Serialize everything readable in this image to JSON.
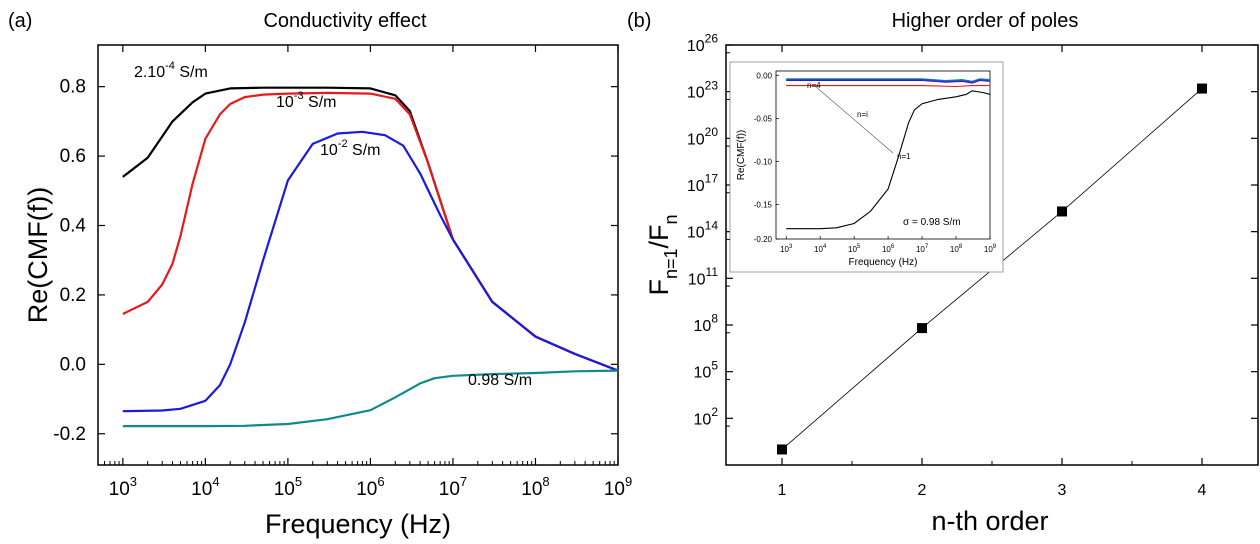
{
  "chart_data": [
    {
      "type": "line",
      "panel_label": "(a)",
      "title": "Conductivity effect",
      "xlabel": "Frequency (Hz)",
      "ylabel": "Re(CMF(f))",
      "xscale": "log",
      "xlim": [
        500,
        1000000000
      ],
      "ylim": [
        -0.29,
        0.92
      ],
      "xticks": [
        {
          "value": 1000,
          "base": "10",
          "exp": "3"
        },
        {
          "value": 10000,
          "base": "10",
          "exp": "4"
        },
        {
          "value": 100000,
          "base": "10",
          "exp": "5"
        },
        {
          "value": 1000000,
          "base": "10",
          "exp": "6"
        },
        {
          "value": 10000000,
          "base": "10",
          "exp": "7"
        },
        {
          "value": 100000000,
          "base": "10",
          "exp": "8"
        },
        {
          "value": 1000000000,
          "base": "10",
          "exp": "9"
        }
      ],
      "yticks": [
        {
          "value": -0.2,
          "label": "-0.2"
        },
        {
          "value": 0.0,
          "label": "0.0"
        },
        {
          "value": 0.2,
          "label": "0.2"
        },
        {
          "value": 0.4,
          "label": "0.4"
        },
        {
          "value": 0.6,
          "label": "0.6"
        },
        {
          "value": 0.8,
          "label": "0.8"
        }
      ],
      "grid": false,
      "series": [
        {
          "color": "#000000",
          "x": [
            1000,
            2000,
            4000,
            7000,
            10000,
            20000,
            50000,
            100000,
            300000,
            1000000,
            2000000,
            3000000,
            5000000,
            10000000,
            30000000,
            100000000,
            300000000,
            1000000000
          ],
          "y": [
            0.54,
            0.595,
            0.7,
            0.755,
            0.78,
            0.795,
            0.797,
            0.797,
            0.797,
            0.795,
            0.775,
            0.73,
            0.58,
            0.36,
            0.18,
            0.08,
            0.03,
            -0.018
          ]
        },
        {
          "color": "#e8191b",
          "x": [
            1000,
            2000,
            3000,
            4000,
            5000,
            7000,
            10000,
            15000,
            20000,
            30000,
            50000,
            100000,
            300000,
            1000000,
            2000000,
            3000000,
            5000000,
            10000000,
            30000000,
            100000000,
            300000000,
            1000000000
          ],
          "y": [
            0.145,
            0.18,
            0.23,
            0.29,
            0.37,
            0.52,
            0.65,
            0.72,
            0.75,
            0.77,
            0.777,
            0.78,
            0.782,
            0.78,
            0.765,
            0.72,
            0.58,
            0.36,
            0.18,
            0.08,
            0.03,
            -0.018
          ]
        },
        {
          "color": "#1a1ae0",
          "x": [
            1000,
            3000,
            5000,
            10000,
            15000,
            20000,
            30000,
            50000,
            100000,
            200000,
            400000,
            800000,
            1500000,
            2500000,
            4000000,
            7000000,
            10000000,
            30000000,
            100000000,
            300000000,
            1000000000
          ],
          "y": [
            -0.135,
            -0.133,
            -0.128,
            -0.105,
            -0.06,
            0.0,
            0.12,
            0.3,
            0.53,
            0.635,
            0.665,
            0.67,
            0.66,
            0.63,
            0.55,
            0.43,
            0.36,
            0.18,
            0.08,
            0.03,
            -0.018
          ]
        },
        {
          "color": "#0f8a8a",
          "x": [
            1000,
            10000,
            30000,
            100000,
            300000,
            1000000,
            2000000,
            4000000,
            6000000,
            10000000,
            30000000,
            100000000,
            300000000,
            1000000000
          ],
          "y": [
            -0.178,
            -0.178,
            -0.177,
            -0.172,
            -0.158,
            -0.132,
            -0.095,
            -0.055,
            -0.04,
            -0.033,
            -0.028,
            -0.025,
            -0.02,
            -0.018
          ]
        }
      ],
      "annotations": [
        {
          "base": "2.10",
          "sup": "-4",
          "rest": " S/m"
        },
        {
          "base": "10",
          "sup": "-3",
          "rest": " S/m"
        },
        {
          "base": "10",
          "sup": "-2",
          "rest": " S/m"
        },
        {
          "base": "0.98 S/m",
          "sup": "",
          "rest": ""
        }
      ]
    },
    {
      "type": "scatter",
      "panel_label": "(b)",
      "title": "Higher order of poles",
      "xlabel": "n-th order",
      "ylabel_parts": {
        "a": "F",
        "a_sub": "n=1",
        "b": "/F",
        "b_sub": "n"
      },
      "yscale": "log",
      "xlim": [
        0.6,
        4.4
      ],
      "ylim_exp": [
        -1,
        26
      ],
      "xticks": [
        {
          "value": 1,
          "label": "1"
        },
        {
          "value": 2,
          "label": "2"
        },
        {
          "value": 3,
          "label": "3"
        },
        {
          "value": 4,
          "label": "4"
        }
      ],
      "yticks": [
        {
          "value": 2,
          "base": "10",
          "exp": "2"
        },
        {
          "value": 5,
          "base": "10",
          "exp": "5"
        },
        {
          "value": 8,
          "base": "10",
          "exp": "8"
        },
        {
          "value": 11,
          "base": "10",
          "exp": "11"
        },
        {
          "value": 14,
          "base": "10",
          "exp": "14"
        },
        {
          "value": 17,
          "base": "10",
          "exp": "17"
        },
        {
          "value": 20,
          "base": "10",
          "exp": "20"
        },
        {
          "value": 23,
          "base": "10",
          "exp": "23"
        },
        {
          "value": 26,
          "base": "10",
          "exp": "26"
        }
      ],
      "grid": false,
      "x": [
        1,
        2,
        3,
        4
      ],
      "y_log10": [
        0.0,
        7.8,
        15.3,
        23.2
      ],
      "marker_color": "#000000",
      "inset": {
        "type": "line",
        "xlabel": "Frequency (Hz)",
        "ylabel": "Re(CMF(f))",
        "xscale": "log",
        "xlim": [
          500,
          1000000000
        ],
        "ylim": [
          -0.19,
          0.005
        ],
        "xticks": [
          {
            "value": 1000,
            "base": "10",
            "exp": "3"
          },
          {
            "value": 10000,
            "base": "10",
            "exp": "4"
          },
          {
            "value": 100000,
            "base": "10",
            "exp": "5"
          },
          {
            "value": 1000000,
            "base": "10",
            "exp": "6"
          },
          {
            "value": 10000000,
            "base": "10",
            "exp": "7"
          },
          {
            "value": 100000000,
            "base": "10",
            "exp": "8"
          },
          {
            "value": 1000000000,
            "base": "10",
            "exp": "9"
          }
        ],
        "yticks": [
          {
            "value": 0.0,
            "label": "0.00"
          },
          {
            "value": -0.05,
            "label": "-0.05"
          },
          {
            "value": -0.1,
            "label": "-0.10"
          },
          {
            "value": -0.15,
            "label": "-0.15"
          },
          {
            "value": -0.2,
            "label": "-0.20"
          }
        ],
        "series": [
          {
            "color": "#000000",
            "x": [
              1000,
              10000,
              30000,
              100000,
              300000,
              1000000,
              2000000,
              4000000,
              6000000,
              10000000,
              30000000,
              100000000,
              200000000,
              300000000,
              600000000,
              1000000000
            ],
            "y": [
              -0.178,
              -0.178,
              -0.177,
              -0.172,
              -0.158,
              -0.132,
              -0.095,
              -0.055,
              -0.04,
              -0.033,
              -0.028,
              -0.025,
              -0.022,
              -0.018,
              -0.02,
              -0.022
            ]
          },
          {
            "color": "#e8191b",
            "x": [
              1000,
              10000000,
              100000000,
              300000000,
              1000000000
            ],
            "y": [
              -0.012,
              -0.012,
              -0.013,
              -0.012,
              -0.012
            ]
          },
          {
            "color": "#1a1ae0",
            "x": [
              1000,
              10000000,
              50000000,
              150000000,
              300000000,
              500000000,
              1000000000
            ],
            "y": [
              -0.006,
              -0.006,
              -0.008,
              -0.007,
              -0.009,
              -0.006,
              -0.007
            ]
          },
          {
            "color": "#0f8a8a",
            "x": [
              1000,
              10000000,
              50000000,
              150000000,
              300000000,
              500000000,
              1000000000
            ],
            "y": [
              -0.004,
              -0.004,
              -0.006,
              -0.005,
              -0.007,
              -0.004,
              -0.005
            ]
          },
          {
            "color": "#3a3ad0",
            "x": [
              1000,
              10000000,
              50000000,
              150000000,
              300000000,
              500000000,
              1000000000
            ],
            "y": [
              -0.005,
              -0.005,
              -0.007,
              -0.006,
              -0.008,
              -0.005,
              -0.006
            ]
          }
        ],
        "annotations": [
          "n=4",
          "n=i",
          "n=1",
          "σ = 0.98 S/m"
        ]
      }
    }
  ]
}
